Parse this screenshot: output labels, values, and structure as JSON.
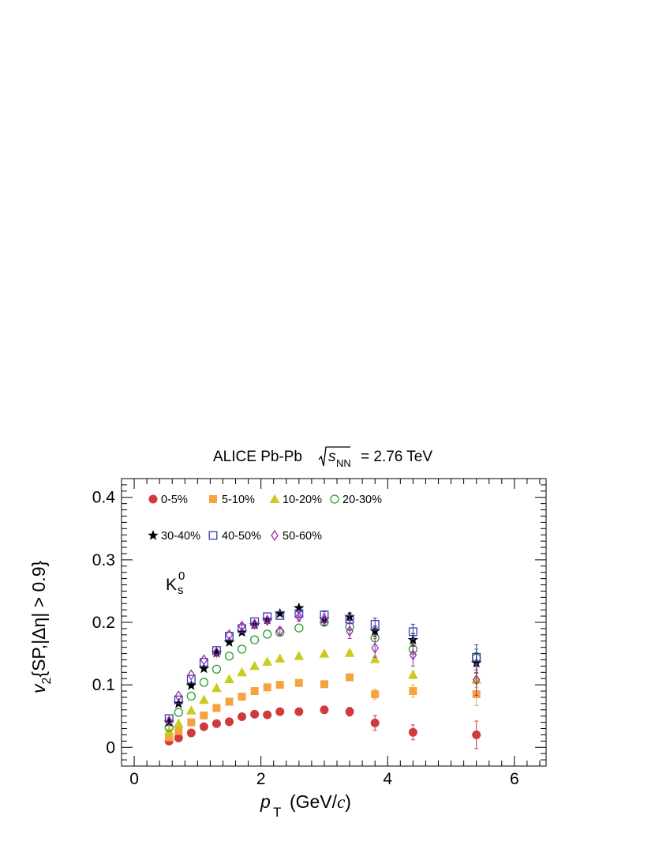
{
  "chart_data": {
    "type": "scatter",
    "title": {
      "prefix": "ALICE Pb-Pb",
      "sqrt_var": "s",
      "sqrt_sub": "NN",
      "suffix": "= 2.76 TeV"
    },
    "xlabel": {
      "var": "p",
      "sub": "T",
      "unit_open": "(GeV/",
      "unit_c": "c",
      "unit_close": ")"
    },
    "ylabel": {
      "var": "v",
      "sub": "2",
      "rest": "{SP,|Δη| > 0.9}"
    },
    "annotation": {
      "main": "K",
      "sub": "s",
      "sup": "0"
    },
    "xlim": [
      -0.2,
      6.5
    ],
    "ylim": [
      -0.03,
      0.43
    ],
    "x_ticks": [
      {
        "v": 0,
        "label": "0"
      },
      {
        "v": 2,
        "label": "2"
      },
      {
        "v": 4,
        "label": "4"
      },
      {
        "v": 6,
        "label": "6"
      }
    ],
    "y_ticks": [
      {
        "v": 0,
        "label": "0"
      },
      {
        "v": 0.1,
        "label": "0.1"
      },
      {
        "v": 0.2,
        "label": "0.2"
      },
      {
        "v": 0.3,
        "label": "0.3"
      },
      {
        "v": 0.4,
        "label": "0.4"
      }
    ],
    "legend_placement": "top-left",
    "series": [
      {
        "name": "0-5%",
        "color": "#d03a3a",
        "marker": "circle-filled",
        "x": [
          0.55,
          0.7,
          0.9,
          1.1,
          1.3,
          1.5,
          1.7,
          1.9,
          2.1,
          2.3,
          2.6,
          3.0,
          3.4,
          3.8,
          4.4,
          5.4
        ],
        "y": [
          0.01,
          0.015,
          0.023,
          0.033,
          0.038,
          0.041,
          0.049,
          0.053,
          0.052,
          0.057,
          0.057,
          0.06,
          0.057,
          0.039,
          0.024,
          0.02
        ],
        "err": [
          0.001,
          0.001,
          0.001,
          0.001,
          0.001,
          0.001,
          0.001,
          0.002,
          0.002,
          0.002,
          0.003,
          0.005,
          0.007,
          0.012,
          0.012,
          0.022
        ]
      },
      {
        "name": "5-10%",
        "color": "#f7a23f",
        "marker": "square-filled",
        "x": [
          0.55,
          0.7,
          0.9,
          1.1,
          1.3,
          1.5,
          1.7,
          1.9,
          2.1,
          2.3,
          2.6,
          3.0,
          3.4,
          3.8,
          4.4,
          5.4
        ],
        "y": [
          0.016,
          0.026,
          0.04,
          0.051,
          0.063,
          0.073,
          0.081,
          0.09,
          0.096,
          0.1,
          0.103,
          0.101,
          0.112,
          0.085,
          0.09,
          0.085
        ],
        "err": [
          0.001,
          0.001,
          0.001,
          0.001,
          0.001,
          0.001,
          0.002,
          0.002,
          0.002,
          0.002,
          0.003,
          0.004,
          0.005,
          0.008,
          0.01,
          0.018
        ]
      },
      {
        "name": "10-20%",
        "color": "#c8cc1f",
        "marker": "triangle-filled",
        "x": [
          0.55,
          0.7,
          0.9,
          1.1,
          1.3,
          1.5,
          1.7,
          1.9,
          2.1,
          2.3,
          2.6,
          3.0,
          3.4,
          3.8,
          4.4,
          5.4
        ],
        "y": [
          0.026,
          0.038,
          0.059,
          0.076,
          0.095,
          0.109,
          0.12,
          0.13,
          0.137,
          0.142,
          0.146,
          0.15,
          0.151,
          0.141,
          0.116,
          0.108
        ],
        "err": [
          0.001,
          0.001,
          0.001,
          0.001,
          0.001,
          0.001,
          0.001,
          0.002,
          0.002,
          0.002,
          0.002,
          0.003,
          0.004,
          0.005,
          0.006,
          0.012
        ]
      },
      {
        "name": "20-30%",
        "color": "#2a9a2a",
        "marker": "circle-open",
        "x": [
          0.55,
          0.7,
          0.9,
          1.1,
          1.3,
          1.5,
          1.7,
          1.9,
          2.1,
          2.3,
          2.6,
          3.0,
          3.4,
          3.8,
          4.4,
          5.4
        ],
        "y": [
          0.032,
          0.056,
          0.082,
          0.104,
          0.125,
          0.146,
          0.157,
          0.172,
          0.181,
          0.184,
          0.191,
          0.2,
          0.193,
          0.175,
          0.157,
          0.143
        ],
        "err": [
          0.001,
          0.001,
          0.001,
          0.001,
          0.001,
          0.001,
          0.002,
          0.002,
          0.002,
          0.002,
          0.003,
          0.004,
          0.005,
          0.006,
          0.008,
          0.014
        ]
      },
      {
        "name": "30-40%",
        "color": "#000000",
        "marker": "star-filled",
        "x": [
          0.55,
          0.7,
          0.9,
          1.1,
          1.3,
          1.5,
          1.7,
          1.9,
          2.1,
          2.3,
          2.6,
          3.0,
          3.4,
          3.8,
          4.4,
          5.4
        ],
        "y": [
          0.04,
          0.07,
          0.099,
          0.126,
          0.151,
          0.168,
          0.184,
          0.196,
          0.204,
          0.214,
          0.223,
          0.205,
          0.209,
          0.186,
          0.172,
          0.135
        ],
        "err": [
          0.001,
          0.001,
          0.001,
          0.001,
          0.001,
          0.002,
          0.002,
          0.002,
          0.002,
          0.003,
          0.003,
          0.005,
          0.006,
          0.008,
          0.01,
          0.016
        ]
      },
      {
        "name": "40-50%",
        "color": "#3a3ab5",
        "marker": "square-open",
        "x": [
          0.55,
          0.7,
          0.9,
          1.1,
          1.3,
          1.5,
          1.7,
          1.9,
          2.1,
          2.3,
          2.6,
          3.0,
          3.4,
          3.8,
          4.4,
          5.4
        ],
        "y": [
          0.046,
          0.076,
          0.109,
          0.136,
          0.155,
          0.178,
          0.19,
          0.201,
          0.209,
          0.211,
          0.214,
          0.212,
          0.205,
          0.197,
          0.185,
          0.144
        ],
        "err": [
          0.001,
          0.001,
          0.001,
          0.001,
          0.002,
          0.002,
          0.002,
          0.003,
          0.003,
          0.003,
          0.004,
          0.005,
          0.007,
          0.01,
          0.012,
          0.02
        ]
      },
      {
        "name": "50-60%",
        "color": "#9a2fa8",
        "marker": "diamond-open",
        "x": [
          0.55,
          0.7,
          0.9,
          1.1,
          1.3,
          1.5,
          1.7,
          1.9,
          2.1,
          2.3,
          2.6,
          3.0,
          3.4,
          3.8,
          4.4,
          5.4
        ],
        "y": [
          0.042,
          0.082,
          0.116,
          0.14,
          0.152,
          0.18,
          0.194,
          0.197,
          0.203,
          0.186,
          0.209,
          0.204,
          0.186,
          0.159,
          0.148,
          0.108
        ],
        "err": [
          0.002,
          0.002,
          0.002,
          0.003,
          0.003,
          0.003,
          0.004,
          0.004,
          0.005,
          0.006,
          0.007,
          0.009,
          0.012,
          0.015,
          0.018,
          0.025
        ]
      }
    ]
  }
}
